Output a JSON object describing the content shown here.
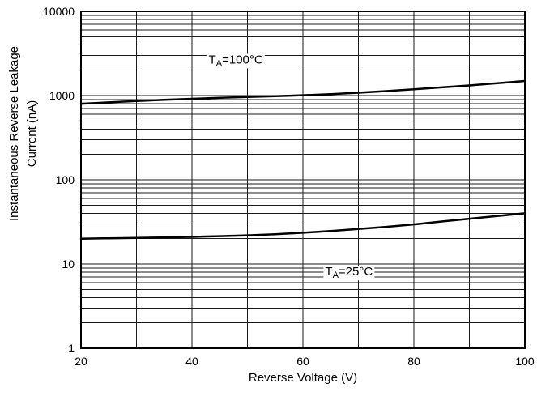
{
  "chart_data": {
    "type": "line",
    "xlabel": "Reverse Voltage (V)",
    "ylabel": "Instantaneous Reverse Leakage Current (nA)",
    "ylabel_lines": [
      "Instantaneous Reverse Leakage",
      "Current (nA)"
    ],
    "xlim": [
      20,
      100
    ],
    "x_grid_step": 10,
    "x_tick_values": [
      20,
      40,
      60,
      80,
      100
    ],
    "x_tick_labels": [
      "20",
      "40",
      "60",
      "80",
      "100"
    ],
    "y_scale": "log",
    "ylim": [
      1,
      10000
    ],
    "y_tick_values": [
      1,
      10,
      100,
      1000,
      10000
    ],
    "y_tick_labels": [
      "1",
      "10",
      "100",
      "1000",
      "10000"
    ],
    "grid": "both",
    "line_color": "#000000",
    "series": [
      {
        "name": "TA=100°C",
        "x": [
          20,
          25,
          30,
          35,
          40,
          45,
          50,
          55,
          60,
          65,
          70,
          75,
          80,
          85,
          90,
          95,
          100
        ],
        "y": [
          800,
          830,
          860,
          890,
          915,
          940,
          960,
          985,
          1010,
          1040,
          1080,
          1130,
          1185,
          1250,
          1320,
          1400,
          1490
        ]
      },
      {
        "name": "TA=25°C",
        "x": [
          20,
          25,
          30,
          35,
          40,
          45,
          50,
          55,
          60,
          65,
          70,
          75,
          80,
          85,
          90,
          95,
          100
        ],
        "y": [
          20,
          20.2,
          20.4,
          20.7,
          21,
          21.4,
          21.9,
          22.6,
          23.5,
          24.6,
          26,
          27.6,
          29.5,
          32,
          34.5,
          37.2,
          40
        ]
      }
    ],
    "annotations": [
      {
        "main": "T",
        "sub": "A",
        "rest": "=100°C",
        "x": 43,
        "y": 2400
      },
      {
        "main": "T",
        "sub": "A",
        "rest": "=25°C",
        "x": 64,
        "y": 7.3
      }
    ]
  }
}
